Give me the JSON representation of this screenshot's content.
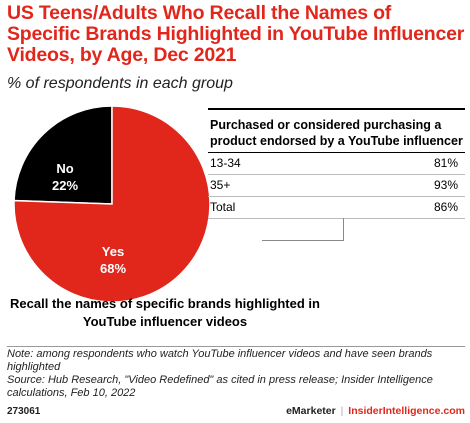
{
  "header": {
    "title": "US Teens/Adults Who Recall the Names of Specific Brands Highlighted in YouTube Influencer Videos, by Age, Dec 2021",
    "subtitle": "% of respondents in each group"
  },
  "chart_data": [
    {
      "type": "pie",
      "categories": [
        "No",
        "Yes"
      ],
      "values": [
        22,
        68
      ],
      "value_labels": [
        "22%",
        "68%"
      ],
      "colors": [
        "#000000",
        "#e1261c"
      ],
      "caption": "Recall the names of specific brands highlighted in YouTube influencer videos"
    },
    {
      "type": "table",
      "title": "Purchased or considered purchasing a product endorsed by a YouTube influencer",
      "rows": [
        {
          "label": "13-34",
          "value": "81%"
        },
        {
          "label": "35+",
          "value": "93%"
        },
        {
          "label": "Total",
          "value": "86%"
        }
      ]
    }
  ],
  "footer": {
    "note": "Note: among respondents who watch YouTube influencer videos and have seen brands highlighted",
    "source": "Source: Hub Research, \"Video Redefined\" as cited in press release; Insider Intelligence calculations, Feb 10, 2022",
    "id": "273061",
    "brand1": "eMarketer",
    "separator": "|",
    "brand2": "InsiderIntelligence.com"
  }
}
